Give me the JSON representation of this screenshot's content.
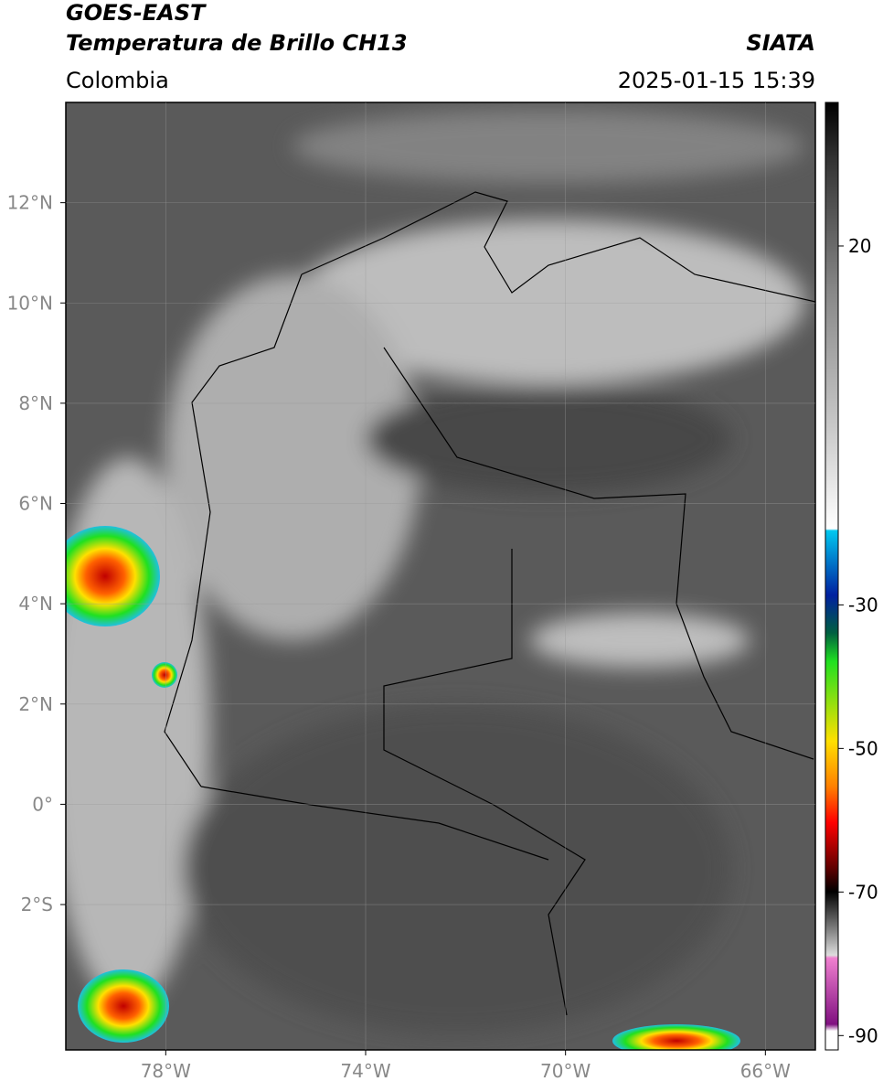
{
  "chart_data": {
    "type": "map",
    "title": "GOES-EAST",
    "subtitle": "Temperatura de Brillo CH13",
    "source": "SIATA",
    "region": "Colombia",
    "datetime": "2025-01-15 15:39",
    "xlim": [
      -80,
      -65
    ],
    "ylim": [
      -4.9,
      14
    ],
    "xticks": [
      {
        "value": -78,
        "label": "78°W"
      },
      {
        "value": -74,
        "label": "74°W"
      },
      {
        "value": -70,
        "label": "70°W"
      },
      {
        "value": -66,
        "label": "66°W"
      }
    ],
    "yticks": [
      {
        "value": 12,
        "label": "12°N"
      },
      {
        "value": 10,
        "label": "10°N"
      },
      {
        "value": 8,
        "label": "8°N"
      },
      {
        "value": 6,
        "label": "6°N"
      },
      {
        "value": 4,
        "label": "4°N"
      },
      {
        "value": 2,
        "label": "2°N"
      },
      {
        "value": 0,
        "label": "0°"
      },
      {
        "value": -2,
        "label": "2°S"
      }
    ],
    "grid": true,
    "colorbar": {
      "lim": [
        -92,
        40
      ],
      "ticks": [
        20,
        -30,
        -50,
        -70,
        -90
      ]
    }
  }
}
